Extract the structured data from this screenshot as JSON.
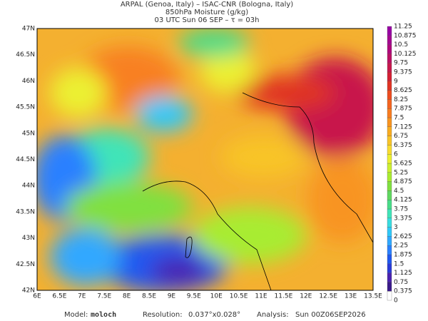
{
  "header": {
    "line1": "ARPAL (Genoa, Italy)  –  ISAC-CNR (Bologna, Italy)",
    "line2": "850hPa Moisture (g/kg)",
    "line3": "03 UTC Sun 06 SEP  –  τ = 03h"
  },
  "map": {
    "lat_labels": [
      "47N",
      "46.5N",
      "46N",
      "45.5N",
      "45N",
      "44.5N",
      "44N",
      "43.5N",
      "43N",
      "42.5N",
      "42N"
    ],
    "lon_labels": [
      "6E",
      "6.5E",
      "7E",
      "7.5E",
      "8E",
      "8.5E",
      "9E",
      "9.5E",
      "10E",
      "10.5E",
      "11E",
      "11.5E",
      "12E",
      "12.5E",
      "13E",
      "13.5E"
    ]
  },
  "colorbar": {
    "levels": [
      0,
      0.375,
      0.75,
      1.125,
      1.5,
      1.875,
      2.25,
      2.625,
      3,
      3.375,
      3.75,
      4.125,
      4.5,
      4.875,
      5.25,
      5.625,
      6,
      6.375,
      6.75,
      7.125,
      7.5,
      7.875,
      8.25,
      8.625,
      9,
      9.375,
      9.75,
      10.125,
      10.5,
      10.875,
      11.25
    ],
    "colors": [
      "#ffffff",
      "#3a1a8a",
      "#4a22b0",
      "#2a3ad8",
      "#2058f0",
      "#2a80ff",
      "#30a8ff",
      "#30c8f8",
      "#38dce0",
      "#40e4b8",
      "#48dc88",
      "#60d860",
      "#80e040",
      "#a8ec30",
      "#ccf030",
      "#ecf030",
      "#f8dc30",
      "#f8c428",
      "#f8ac20",
      "#f89420",
      "#f87c20",
      "#f46420",
      "#ec4c20",
      "#e03424",
      "#d42034",
      "#c8184c",
      "#bc1064",
      "#b0087c",
      "#a40890",
      "#9800a4"
    ]
  },
  "footer": {
    "model_label": "Model:",
    "model": "moloch",
    "resolution_label": "Resolution:",
    "resolution": "0.037°x0.028°",
    "analysis_label": "Analysis:",
    "analysis": "Sun 00Z06SEP2026"
  }
}
